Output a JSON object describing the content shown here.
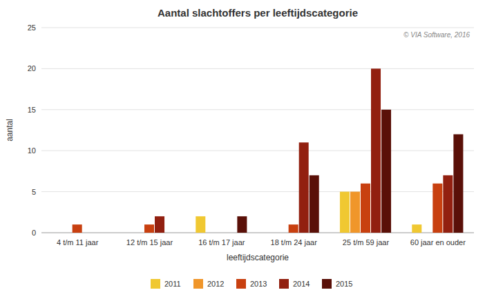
{
  "chart_data": {
    "type": "bar",
    "title": "Aantal slachtoffers per leeftijdscategorie",
    "x_label": "leeftijdscategorie",
    "y_label": "aantal",
    "annotations": [
      "© VIA Software, 2016"
    ],
    "categories": [
      "4 t/m 11 jaar",
      "12 t/m 15 jaar",
      "16 t/m 17 jaar",
      "18 t/m 24 jaar",
      "25 t/m 59 jaar",
      "60 jaar en ouder"
    ],
    "series": [
      {
        "name": "2011",
        "color": "#F0C832",
        "values": [
          0,
          0,
          2,
          0,
          5,
          1
        ]
      },
      {
        "name": "2012",
        "color": "#F0962A",
        "values": [
          0,
          0,
          0,
          0,
          5,
          0
        ]
      },
      {
        "name": "2013",
        "color": "#C84010",
        "values": [
          1,
          1,
          0,
          1,
          6,
          6
        ]
      },
      {
        "name": "2014",
        "color": "#922010",
        "values": [
          0,
          2,
          0,
          11,
          20,
          7
        ]
      },
      {
        "name": "2015",
        "color": "#5A1008",
        "values": [
          0,
          0,
          2,
          7,
          15,
          12
        ]
      }
    ],
    "ylim": [
      0,
      25
    ],
    "yticks": [
      0,
      5,
      10,
      15,
      20,
      25
    ],
    "grid": true,
    "legend": "bottom"
  }
}
